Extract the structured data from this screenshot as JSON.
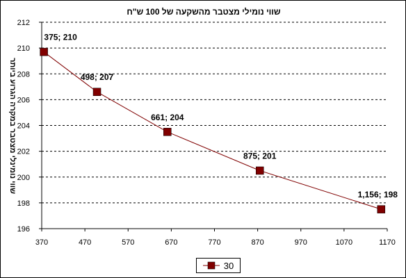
{
  "chart_data": {
    "type": "line",
    "title": "שווי נומילי  מצטבר מהשקעה של 100 ש\"ח",
    "xlabel": "",
    "ylabel": "שווי נומינלי מצטבר במקרה הגרוע ביותר",
    "xlim": [
      370,
      1170
    ],
    "ylim": [
      196,
      212
    ],
    "x_ticks": [
      370,
      470,
      570,
      670,
      770,
      870,
      970,
      1070,
      1170
    ],
    "y_ticks": [
      196,
      198,
      200,
      202,
      204,
      206,
      208,
      210,
      212
    ],
    "grid": "horizontal dashed",
    "legend_position": "bottom",
    "series": [
      {
        "name": "30",
        "color": "#800000",
        "marker": "square",
        "x": [
          375,
          498,
          661,
          875,
          1156
        ],
        "y": [
          209.7,
          206.6,
          203.5,
          200.5,
          197.5
        ],
        "labels": [
          "375; 210",
          "498; 207",
          "661; 204",
          "875; 201",
          "1,156; 198"
        ]
      }
    ]
  }
}
